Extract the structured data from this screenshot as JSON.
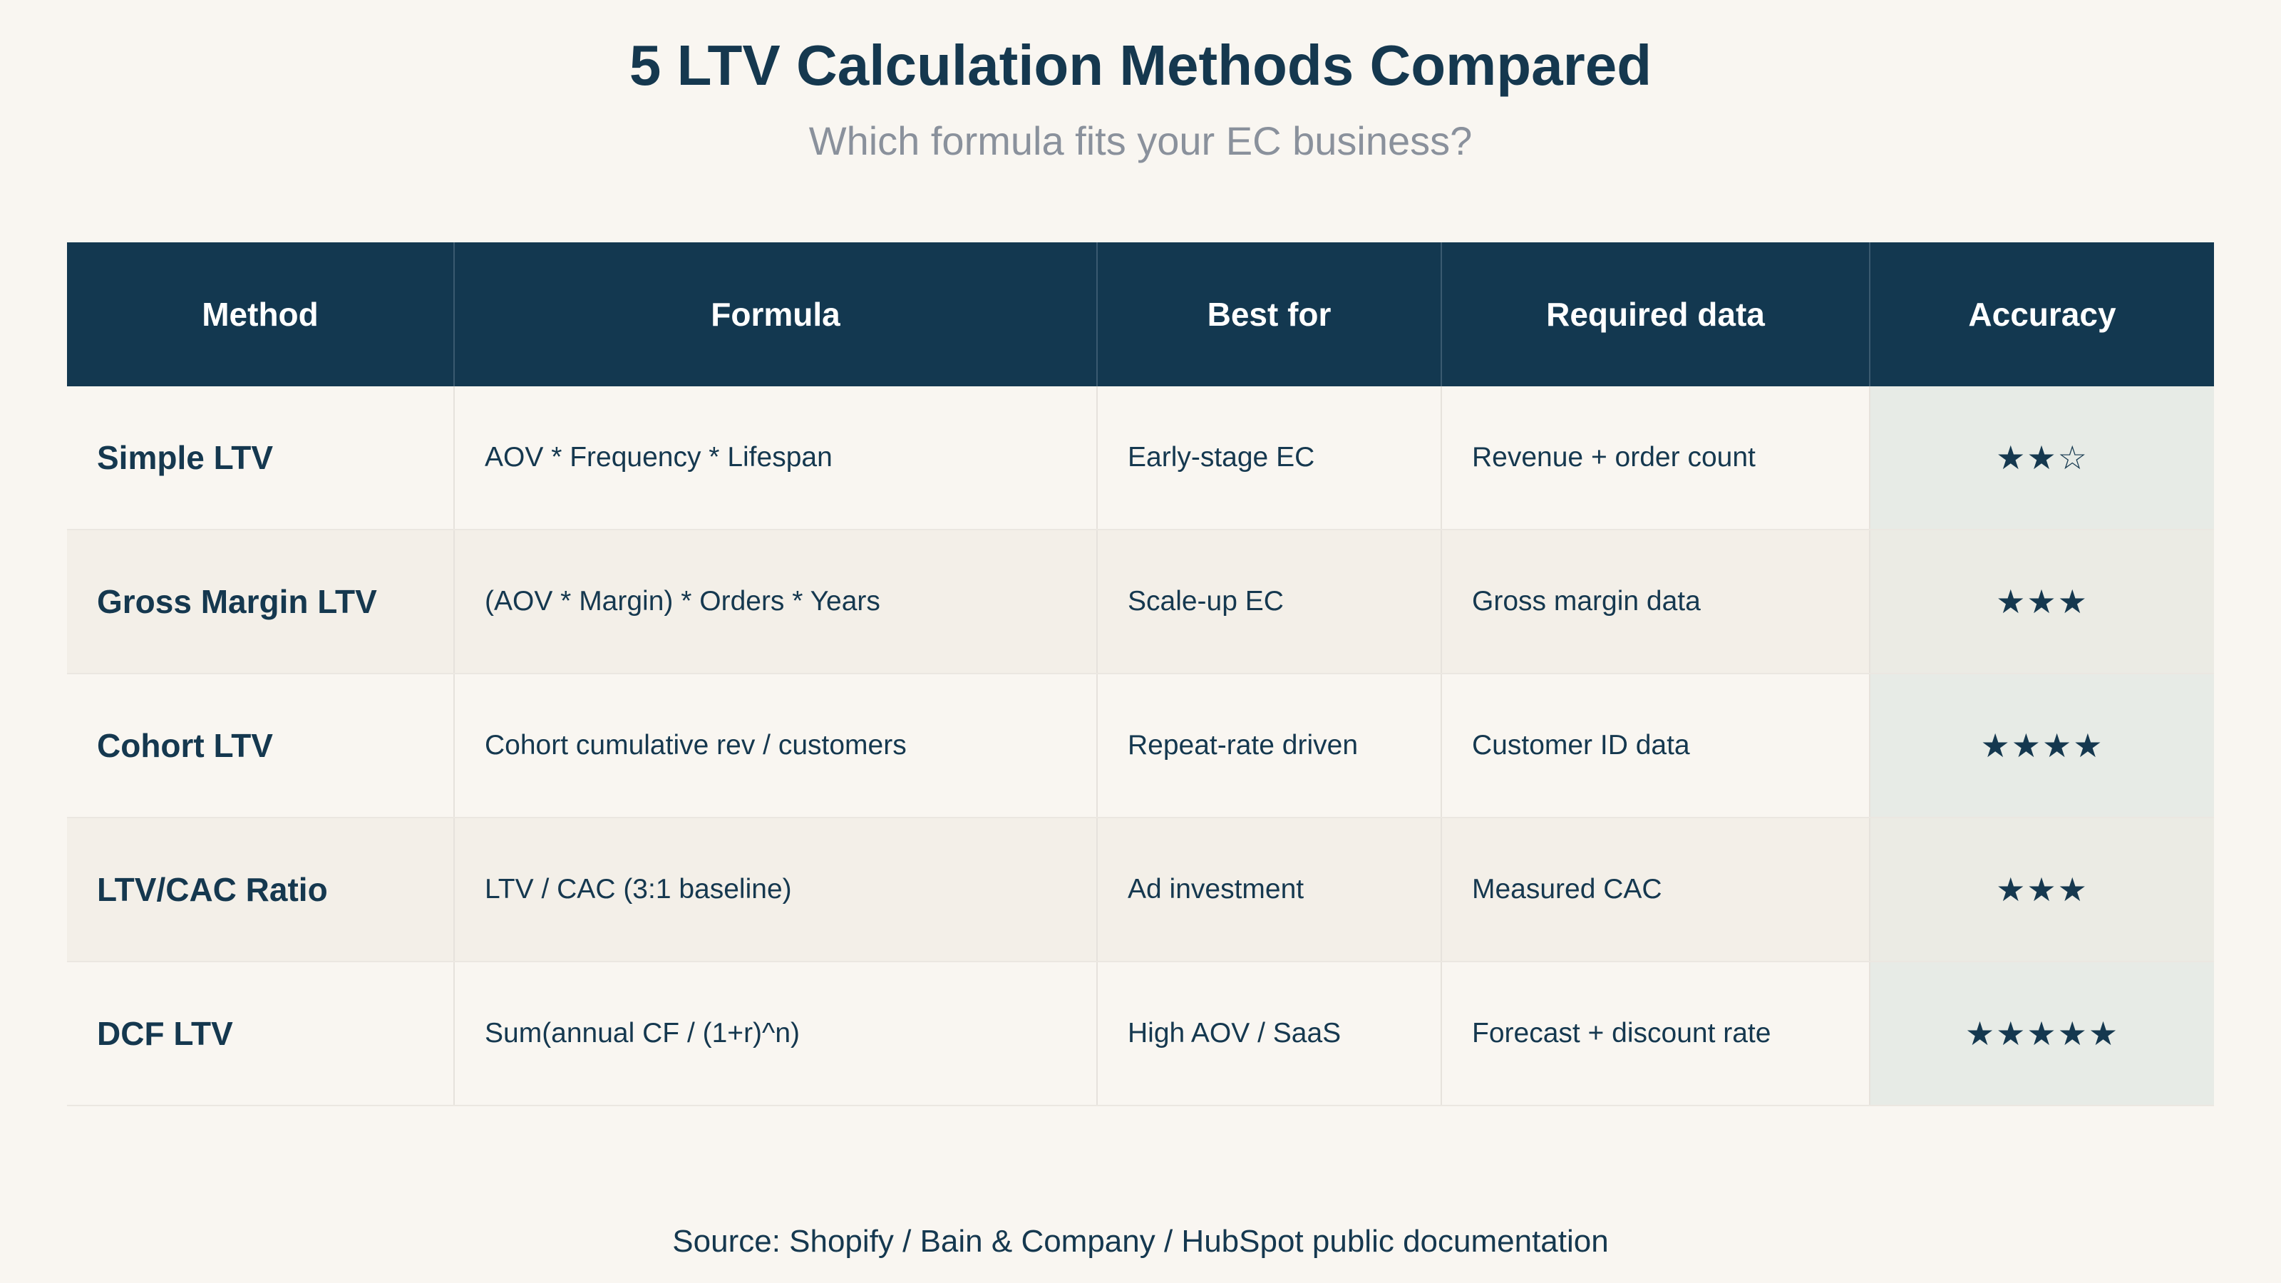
{
  "title": "5 LTV Calculation Methods Compared",
  "subtitle": "Which formula fits your EC business?",
  "table": {
    "headers": [
      "Method",
      "Formula",
      "Best for",
      "Required data",
      "Accuracy"
    ],
    "rows": [
      {
        "method": "Simple LTV",
        "formula": "AOV * Frequency * Lifespan",
        "best_for": "Early-stage EC",
        "required_data": "Revenue + order count",
        "accuracy": "★★☆"
      },
      {
        "method": "Gross Margin LTV",
        "formula": "(AOV * Margin) * Orders * Years",
        "best_for": "Scale-up EC",
        "required_data": "Gross margin data",
        "accuracy": "★★★"
      },
      {
        "method": "Cohort LTV",
        "formula": "Cohort cumulative rev / customers",
        "best_for": "Repeat-rate driven",
        "required_data": "Customer ID data",
        "accuracy": "★★★★"
      },
      {
        "method": "LTV/CAC Ratio",
        "formula": "LTV / CAC (3:1 baseline)",
        "best_for": "Ad investment",
        "required_data": "Measured CAC",
        "accuracy": "★★★"
      },
      {
        "method": "DCF LTV",
        "formula": "Sum(annual CF / (1+r)^n)",
        "best_for": "High AOV / SaaS",
        "required_data": "Forecast + discount rate",
        "accuracy": "★★★★★"
      }
    ]
  },
  "source": "Source: Shopify / Bain & Company / HubSpot public documentation",
  "colors": {
    "header_bg": "#133850",
    "text": "#15384f",
    "page_bg": "#f9f6f1"
  }
}
